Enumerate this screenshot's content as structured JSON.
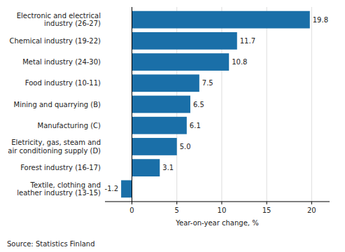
{
  "chart_data": {
    "type": "bar",
    "orientation": "horizontal",
    "categories": [
      "Textile, clothing and\nleather industry (13-15)",
      "Forest industry (16-17)",
      "Eletricity, gas, steam and\nair conditioning supply (D)",
      "Manufacturing (C)",
      "Mining and quarrying (B)",
      "Food industry (10-11)",
      "Metal industry (24-30)",
      "Chemical industry (19-22)",
      "Electronic and electrical\nindustry (26-27)"
    ],
    "values": [
      -1.2,
      3.1,
      5.0,
      6.1,
      6.5,
      7.5,
      10.8,
      11.7,
      19.8
    ],
    "value_labels": [
      "-1.2",
      "3.1",
      "5.0",
      "6.1",
      "6.5",
      "7.5",
      "10.8",
      "11.7",
      "19.8"
    ],
    "data_labels": true,
    "color": "#1a6fa8",
    "x_label": "Year-on-year change, %",
    "xlim": [
      -3,
      22
    ],
    "xticks": [
      0,
      5,
      10,
      15,
      20
    ],
    "grid": true,
    "annotations": [
      "Source: Statistics Finland"
    ]
  }
}
